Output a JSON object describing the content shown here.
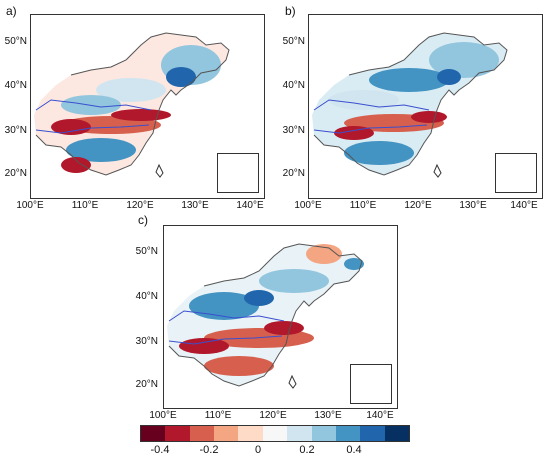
{
  "panels": [
    {
      "label": "a)"
    },
    {
      "label": "b)"
    },
    {
      "label": "c)"
    }
  ],
  "lat_labels": [
    "50°N",
    "40°N",
    "30°N",
    "20°N"
  ],
  "lon_labels": [
    "100°E",
    "110°E",
    "120°E",
    "130°E",
    "140°E"
  ],
  "colorbar": {
    "colors": [
      "#67001f",
      "#b2182b",
      "#d6604d",
      "#f4a582",
      "#fddbc7",
      "#f7f7f7",
      "#d1e5f0",
      "#92c5de",
      "#4393c3",
      "#2166ac",
      "#053061"
    ],
    "tick_labels": [
      "-0.4",
      "-0.2",
      "0",
      "0.2",
      "0.4"
    ]
  }
}
